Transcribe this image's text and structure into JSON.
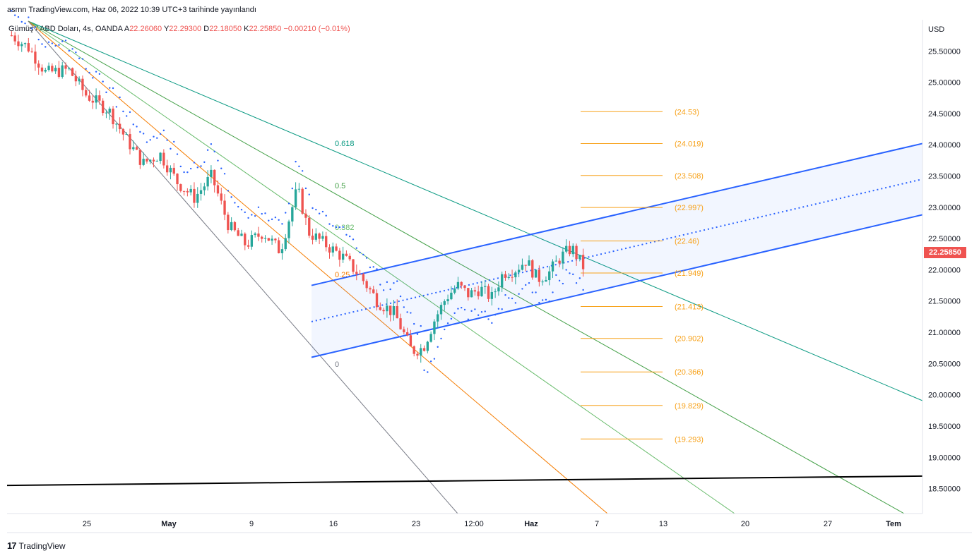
{
  "header": {
    "published": "asrnn TradingView.com, Haz 06, 2022 10:39 UTC+3 tarihinde yayınlandı"
  },
  "symbol": {
    "name": "Gümüş / ABD Doları, 4s, OANDA",
    "o_label": "A",
    "o_value": "22.26060",
    "h_label": "Y",
    "h_value": "22.29300",
    "l_label": "D",
    "l_value": "22.18050",
    "c_label": "K",
    "c_value": "22.25850",
    "change": "−0.00210 (−0.01%)"
  },
  "price_axis": {
    "currency": "USD",
    "last_price": "22.25850"
  },
  "brand": {
    "logo": "17",
    "name": "TradingView"
  },
  "colors": {
    "bull": "#26a69a",
    "bear": "#ef5350",
    "channel": "#2962ff",
    "fib_target": "#f7a21b",
    "fan_0618": "#089981",
    "fan_05": "#43a047",
    "fan_0382": "#66bb6a",
    "fan_025": "#f57c00",
    "fan_0": "#787b86"
  },
  "chart_data": {
    "type": "candlestick",
    "title": "Gümüş / ABD Doları, 4s, OANDA",
    "ylim": [
      18.1,
      26.0
    ],
    "y_ticks": [
      "25.50000",
      "25.00000",
      "24.50000",
      "24.00000",
      "23.50000",
      "23.00000",
      "22.50000",
      "22.00000",
      "21.50000",
      "21.00000",
      "20.50000",
      "20.00000",
      "19.50000",
      "19.00000",
      "18.50000"
    ],
    "x_ticks": [
      "25",
      "May",
      "9",
      "16",
      "23",
      "12:00",
      "Haz",
      "7",
      "13",
      "20",
      "27",
      "Tem"
    ],
    "price_path": [
      {
        "t": 0.0,
        "p": 25.75
      },
      {
        "t": 0.03,
        "p": 25.55
      },
      {
        "t": 0.06,
        "p": 25.15
      },
      {
        "t": 0.1,
        "p": 25.2
      },
      {
        "t": 0.13,
        "p": 24.8
      },
      {
        "t": 0.17,
        "p": 24.55
      },
      {
        "t": 0.2,
        "p": 24.1
      },
      {
        "t": 0.23,
        "p": 23.7
      },
      {
        "t": 0.26,
        "p": 23.85
      },
      {
        "t": 0.29,
        "p": 23.4
      },
      {
        "t": 0.32,
        "p": 23.15
      },
      {
        "t": 0.35,
        "p": 23.5
      },
      {
        "t": 0.38,
        "p": 22.7
      },
      {
        "t": 0.41,
        "p": 22.4
      },
      {
        "t": 0.44,
        "p": 22.6
      },
      {
        "t": 0.47,
        "p": 22.3
      },
      {
        "t": 0.5,
        "p": 23.3
      },
      {
        "t": 0.52,
        "p": 22.6
      },
      {
        "t": 0.55,
        "p": 22.4
      },
      {
        "t": 0.58,
        "p": 22.2
      },
      {
        "t": 0.61,
        "p": 21.9
      },
      {
        "t": 0.64,
        "p": 21.5
      },
      {
        "t": 0.67,
        "p": 21.3
      },
      {
        "t": 0.7,
        "p": 20.7
      },
      {
        "t": 0.72,
        "p": 20.75
      },
      {
        "t": 0.74,
        "p": 21.2
      },
      {
        "t": 0.76,
        "p": 21.55
      },
      {
        "t": 0.78,
        "p": 21.75
      },
      {
        "t": 0.8,
        "p": 21.6
      },
      {
        "t": 0.82,
        "p": 21.7
      },
      {
        "t": 0.84,
        "p": 21.55
      },
      {
        "t": 0.86,
        "p": 21.95
      },
      {
        "t": 0.88,
        "p": 22.0
      },
      {
        "t": 0.9,
        "p": 22.15
      },
      {
        "t": 0.92,
        "p": 21.85
      },
      {
        "t": 0.94,
        "p": 21.95
      },
      {
        "t": 0.96,
        "p": 22.2
      },
      {
        "t": 0.98,
        "p": 22.35
      },
      {
        "t": 1.0,
        "p": 22.05
      }
    ],
    "fib_fan": [
      {
        "label": "0.618",
        "level": 0.618
      },
      {
        "label": "0.5",
        "level": 0.5
      },
      {
        "label": "0.382",
        "level": 0.382
      },
      {
        "label": "0.25",
        "level": 0.25
      },
      {
        "label": "0",
        "level": 0
      }
    ],
    "fib_targets": [
      "(24.53)",
      "(24.019)",
      "(23.508)",
      "(22.997)",
      "(22.46)",
      "(21.949)",
      "(21.413)",
      "(20.902)",
      "(20.366)",
      "(19.829)",
      "(19.293)"
    ],
    "fib_target_values": [
      24.53,
      24.019,
      23.508,
      22.997,
      22.46,
      21.949,
      21.413,
      20.902,
      20.366,
      19.829,
      19.293
    ],
    "support_line": {
      "start": 18.55,
      "end": 18.7
    }
  }
}
